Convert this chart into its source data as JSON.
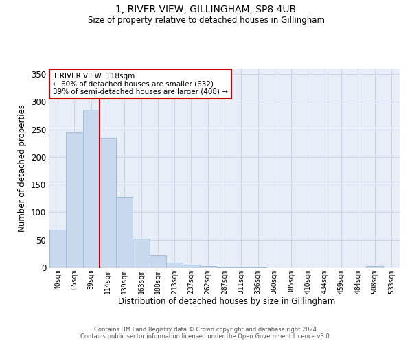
{
  "title": "1, RIVER VIEW, GILLINGHAM, SP8 4UB",
  "subtitle": "Size of property relative to detached houses in Gillingham",
  "xlabel": "Distribution of detached houses by size in Gillingham",
  "ylabel": "Number of detached properties",
  "categories": [
    "40sqm",
    "65sqm",
    "89sqm",
    "114sqm",
    "139sqm",
    "163sqm",
    "188sqm",
    "213sqm",
    "237sqm",
    "262sqm",
    "287sqm",
    "311sqm",
    "336sqm",
    "360sqm",
    "385sqm",
    "410sqm",
    "434sqm",
    "459sqm",
    "484sqm",
    "508sqm",
    "533sqm"
  ],
  "values": [
    68,
    245,
    285,
    235,
    128,
    52,
    22,
    9,
    5,
    2,
    1,
    1,
    1,
    0,
    0,
    0,
    0,
    0,
    0,
    2,
    0
  ],
  "bar_color": "#c8d9ee",
  "bar_edge_color": "#a0bcd8",
  "vline_color": "#cc0000",
  "vline_pos": 2.5,
  "ylim": [
    0,
    360
  ],
  "yticks": [
    0,
    50,
    100,
    150,
    200,
    250,
    300,
    350
  ],
  "annotation_text": "1 RIVER VIEW: 118sqm\n← 60% of detached houses are smaller (632)\n39% of semi-detached houses are larger (408) →",
  "annotation_box_color": "#ffffff",
  "annotation_box_edge_color": "#cc0000",
  "footer_line1": "Contains HM Land Registry data © Crown copyright and database right 2024.",
  "footer_line2": "Contains public sector information licensed under the Open Government Licence v3.0.",
  "background_color": "#ffffff",
  "plot_bg_color": "#e8eef8",
  "grid_color": "#ccd5e5"
}
